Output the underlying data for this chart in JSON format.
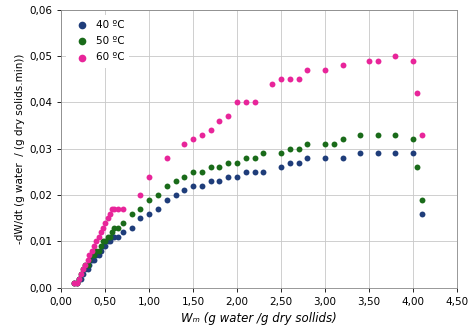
{
  "title": "",
  "xlabel": "Wₘ (g water /g dry sollids)",
  "ylabel": "-dW/dt (g water  / (g dry solids.min))",
  "xlim": [
    0.0,
    4.5
  ],
  "ylim": [
    0.0,
    0.06
  ],
  "xticks": [
    0.0,
    0.5,
    1.0,
    1.5,
    2.0,
    2.5,
    3.0,
    3.5,
    4.0,
    4.5
  ],
  "yticks": [
    0.0,
    0.01,
    0.02,
    0.03,
    0.04,
    0.05,
    0.06
  ],
  "plot_bg": "#ffffff",
  "fig_bg": "#ffffff",
  "grid_color": "#c8c8c8",
  "series": [
    {
      "label": "40 ºC",
      "color": "#1f3d7a",
      "x": [
        0.15,
        0.18,
        0.2,
        0.22,
        0.25,
        0.27,
        0.3,
        0.32,
        0.35,
        0.37,
        0.4,
        0.43,
        0.45,
        0.48,
        0.5,
        0.53,
        0.55,
        0.58,
        0.6,
        0.65,
        0.7,
        0.8,
        0.9,
        1.0,
        1.1,
        1.2,
        1.3,
        1.4,
        1.5,
        1.6,
        1.7,
        1.8,
        1.9,
        2.0,
        2.1,
        2.2,
        2.3,
        2.5,
        2.6,
        2.7,
        2.8,
        3.0,
        3.2,
        3.4,
        3.6,
        3.8,
        4.0,
        4.1
      ],
      "y": [
        0.001,
        0.001,
        0.002,
        0.002,
        0.003,
        0.004,
        0.004,
        0.005,
        0.006,
        0.006,
        0.007,
        0.007,
        0.008,
        0.009,
        0.009,
        0.01,
        0.01,
        0.011,
        0.011,
        0.011,
        0.012,
        0.013,
        0.015,
        0.016,
        0.017,
        0.019,
        0.02,
        0.021,
        0.022,
        0.022,
        0.023,
        0.023,
        0.024,
        0.024,
        0.025,
        0.025,
        0.025,
        0.026,
        0.027,
        0.027,
        0.028,
        0.028,
        0.028,
        0.029,
        0.029,
        0.029,
        0.029,
        0.016
      ]
    },
    {
      "label": "50 ºC",
      "color": "#1a6b1a",
      "x": [
        0.15,
        0.18,
        0.2,
        0.22,
        0.25,
        0.27,
        0.3,
        0.32,
        0.35,
        0.37,
        0.4,
        0.43,
        0.45,
        0.48,
        0.5,
        0.53,
        0.55,
        0.58,
        0.6,
        0.65,
        0.7,
        0.8,
        0.9,
        1.0,
        1.1,
        1.2,
        1.3,
        1.4,
        1.5,
        1.6,
        1.7,
        1.8,
        1.9,
        2.0,
        2.1,
        2.2,
        2.3,
        2.5,
        2.6,
        2.7,
        2.8,
        3.0,
        3.1,
        3.2,
        3.4,
        3.6,
        3.8,
        4.0,
        4.05,
        4.1
      ],
      "y": [
        0.001,
        0.001,
        0.002,
        0.003,
        0.004,
        0.005,
        0.005,
        0.006,
        0.007,
        0.007,
        0.008,
        0.008,
        0.009,
        0.01,
        0.01,
        0.011,
        0.011,
        0.012,
        0.013,
        0.013,
        0.014,
        0.016,
        0.017,
        0.019,
        0.02,
        0.022,
        0.023,
        0.024,
        0.025,
        0.025,
        0.026,
        0.026,
        0.027,
        0.027,
        0.028,
        0.028,
        0.029,
        0.029,
        0.03,
        0.03,
        0.031,
        0.031,
        0.031,
        0.032,
        0.033,
        0.033,
        0.033,
        0.032,
        0.026,
        0.019
      ]
    },
    {
      "label": "60 ºC",
      "color": "#e8259a",
      "x": [
        0.15,
        0.18,
        0.2,
        0.22,
        0.25,
        0.27,
        0.3,
        0.32,
        0.35,
        0.37,
        0.4,
        0.43,
        0.45,
        0.48,
        0.5,
        0.53,
        0.55,
        0.58,
        0.6,
        0.65,
        0.7,
        0.9,
        1.0,
        1.2,
        1.4,
        1.5,
        1.6,
        1.7,
        1.8,
        1.9,
        2.0,
        2.1,
        2.2,
        2.4,
        2.5,
        2.6,
        2.7,
        2.8,
        3.0,
        3.2,
        3.5,
        3.6,
        3.8,
        4.0,
        4.05,
        4.1
      ],
      "y": [
        0.001,
        0.001,
        0.002,
        0.003,
        0.004,
        0.005,
        0.006,
        0.007,
        0.008,
        0.009,
        0.01,
        0.011,
        0.012,
        0.013,
        0.014,
        0.015,
        0.016,
        0.017,
        0.017,
        0.017,
        0.017,
        0.02,
        0.024,
        0.028,
        0.031,
        0.032,
        0.033,
        0.034,
        0.036,
        0.037,
        0.04,
        0.04,
        0.04,
        0.044,
        0.045,
        0.045,
        0.045,
        0.047,
        0.047,
        0.048,
        0.049,
        0.049,
        0.05,
        0.049,
        0.042,
        0.033
      ]
    }
  ]
}
